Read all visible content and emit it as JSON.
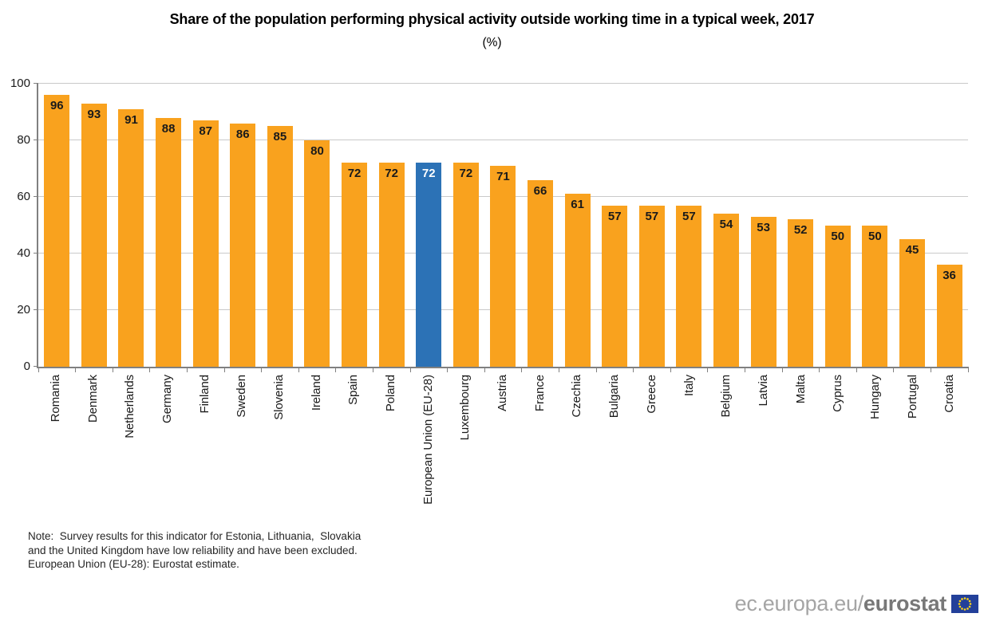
{
  "chart": {
    "title": "Share of the population performing physical activity outside working time in a typical week, 2017",
    "subtitle": "(%)"
  },
  "chart_data": {
    "type": "bar",
    "title": "Share of the population performing physical activity outside working time in a typical week, 2017",
    "subtitle": "(%)",
    "categories": [
      "Romania",
      "Denmark",
      "Netherlands",
      "Germany",
      "Finland",
      "Sweden",
      "Slovenia",
      "Ireland",
      "Spain",
      "Poland",
      "European Union (EU-28)",
      "Luxembourg",
      "Austria",
      "France",
      "Czechia",
      "Bulgaria",
      "Greece",
      "Italy",
      "Belgium",
      "Latvia",
      "Malta",
      "Cyprus",
      "Hungary",
      "Portugal",
      "Croatia"
    ],
    "values": [
      96,
      93,
      91,
      88,
      87,
      86,
      85,
      80,
      72,
      72,
      72,
      72,
      71,
      66,
      61,
      57,
      57,
      57,
      54,
      53,
      52,
      50,
      50,
      45,
      36
    ],
    "highlight_category": "European Union (EU-28)",
    "bar_color": "#F9A21E",
    "highlight_color": "#2C72B6",
    "value_label_color": "#1A1A1A",
    "highlight_value_label_color": "#FFFFFF",
    "ylim": [
      0,
      100
    ],
    "y_ticks": [
      0,
      20,
      40,
      60,
      80,
      100
    ],
    "grid": "horizontal",
    "legend": "none",
    "gridline_color": "#C9C9C9",
    "axis_color": "#808080"
  },
  "note": {
    "lines": [
      "Note:  Survey results for this indicator for Estonia, Lithuania,  Slovakia",
      "and the United Kingdom have low reliability and have been excluded.",
      "European Union (EU-28): Eurostat estimate."
    ]
  },
  "footer": {
    "url_prefix": "ec.europa.eu/",
    "brand": "eurostat",
    "flag_blue": "#23409A",
    "star_color": "#FFD617"
  }
}
